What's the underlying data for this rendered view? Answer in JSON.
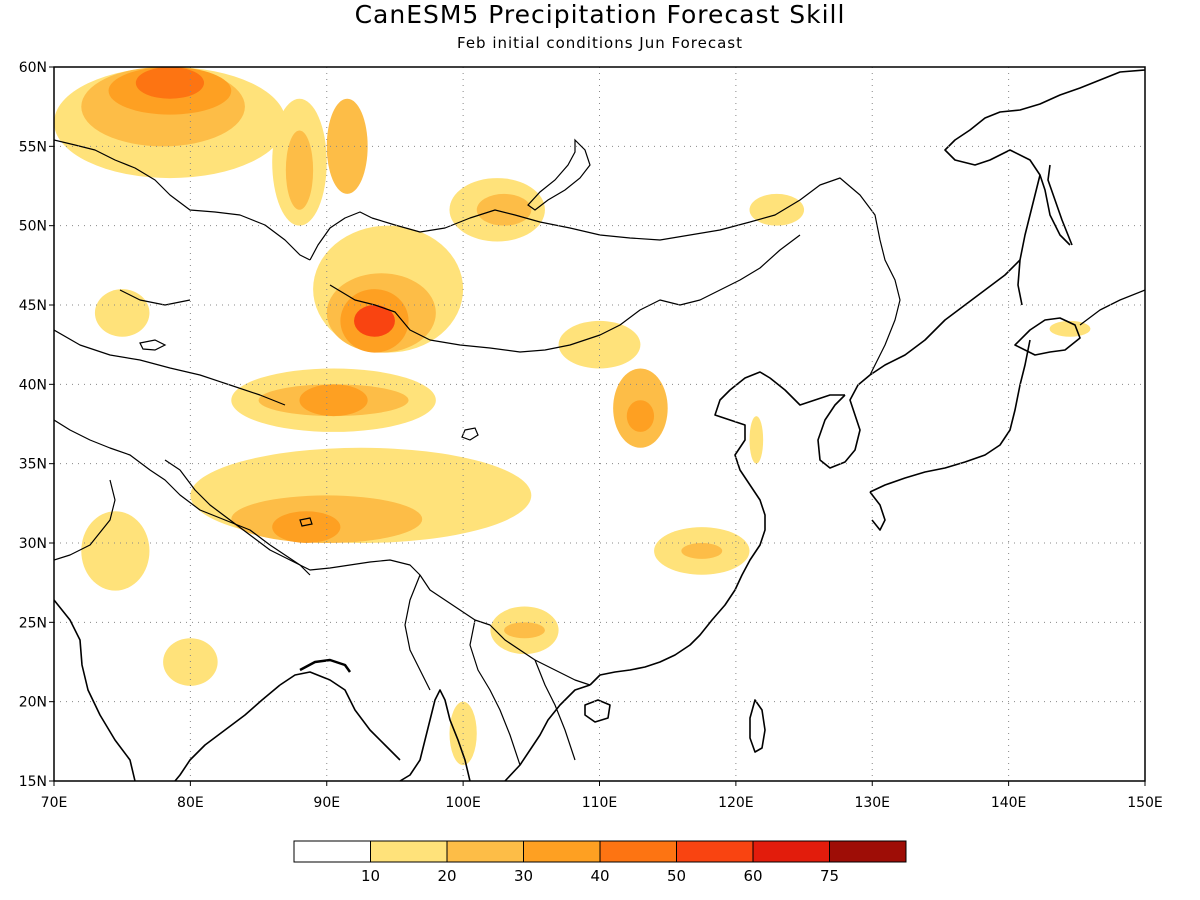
{
  "title": "CanESM5 Precipitation Forecast Skill",
  "subtitle": "Feb initial conditions  Jun Forecast",
  "map": {
    "projection": "lat-lon",
    "lon_range": [
      70,
      150
    ],
    "lat_range": [
      15,
      60
    ],
    "lon_ticks": [
      "70E",
      "80E",
      "90E",
      "100E",
      "110E",
      "120E",
      "130E",
      "140E",
      "150E"
    ],
    "lat_ticks": [
      "15N",
      "20N",
      "25N",
      "30N",
      "35N",
      "40N",
      "45N",
      "50N",
      "55N",
      "60N"
    ],
    "grid": true,
    "grid_style": "dotted"
  },
  "colorbar": {
    "labels": [
      "10",
      "20",
      "30",
      "40",
      "50",
      "60",
      "75"
    ],
    "colors": [
      "#ffffff",
      "#ffe27a",
      "#fdbd47",
      "#fea022",
      "#fd7412",
      "#f94411",
      "#e21c0c",
      "#9e0d06"
    ]
  },
  "chart_data": {
    "type": "heatmap",
    "title": "CanESM5 Precipitation Forecast Skill",
    "subtitle": "Feb initial conditions  Jun Forecast",
    "xlim": [
      70,
      150
    ],
    "ylim": [
      15,
      60
    ],
    "levels": [
      10,
      20,
      30,
      40,
      50,
      60,
      75
    ],
    "regions": [
      {
        "lon": [
          70,
          87
        ],
        "lat": [
          53,
          60
        ],
        "level": 10
      },
      {
        "lon": [
          72,
          84
        ],
        "lat": [
          55,
          60
        ],
        "level": 20
      },
      {
        "lon": [
          74,
          83
        ],
        "lat": [
          57,
          60
        ],
        "level": 30
      },
      {
        "lon": [
          76,
          81
        ],
        "lat": [
          58,
          60
        ],
        "level": 40
      },
      {
        "lon": [
          86,
          90
        ],
        "lat": [
          50,
          58
        ],
        "level": 10
      },
      {
        "lon": [
          87,
          89
        ],
        "lat": [
          51,
          56
        ],
        "level": 20
      },
      {
        "lon": [
          90,
          93
        ],
        "lat": [
          52,
          58
        ],
        "level": 20
      },
      {
        "lon": [
          89,
          100
        ],
        "lat": [
          42,
          50
        ],
        "level": 10
      },
      {
        "lon": [
          90,
          98
        ],
        "lat": [
          42,
          47
        ],
        "level": 20
      },
      {
        "lon": [
          91,
          96
        ],
        "lat": [
          42,
          46
        ],
        "level": 30
      },
      {
        "lon": [
          92,
          95
        ],
        "lat": [
          43,
          45
        ],
        "level": 50
      },
      {
        "lon": [
          99,
          106
        ],
        "lat": [
          49,
          53
        ],
        "level": 10
      },
      {
        "lon": [
          101,
          105
        ],
        "lat": [
          50,
          52
        ],
        "level": 20
      },
      {
        "lon": [
          83,
          98
        ],
        "lat": [
          37,
          41
        ],
        "level": 10
      },
      {
        "lon": [
          85,
          96
        ],
        "lat": [
          38,
          40
        ],
        "level": 20
      },
      {
        "lon": [
          88,
          93
        ],
        "lat": [
          38,
          40
        ],
        "level": 30
      },
      {
        "lon": [
          107,
          113
        ],
        "lat": [
          41,
          44
        ],
        "level": 10
      },
      {
        "lon": [
          111,
          115
        ],
        "lat": [
          36,
          41
        ],
        "level": 20
      },
      {
        "lon": [
          112,
          114
        ],
        "lat": [
          37,
          39
        ],
        "level": 30
      },
      {
        "lon": [
          80,
          105
        ],
        "lat": [
          30,
          36
        ],
        "level": 10
      },
      {
        "lon": [
          83,
          97
        ],
        "lat": [
          30,
          33
        ],
        "level": 20
      },
      {
        "lon": [
          86,
          91
        ],
        "lat": [
          30,
          32
        ],
        "level": 30
      },
      {
        "lon": [
          114,
          121
        ],
        "lat": [
          28,
          31
        ],
        "level": 10
      },
      {
        "lon": [
          116,
          119
        ],
        "lat": [
          29,
          30
        ],
        "level": 20
      },
      {
        "lon": [
          102,
          107
        ],
        "lat": [
          23,
          26
        ],
        "level": 10
      },
      {
        "lon": [
          103,
          106
        ],
        "lat": [
          24,
          25
        ],
        "level": 20
      },
      {
        "lon": [
          99,
          101
        ],
        "lat": [
          16,
          20
        ],
        "level": 10
      },
      {
        "lon": [
          72,
          77
        ],
        "lat": [
          27,
          32
        ],
        "level": 10
      },
      {
        "lon": [
          78,
          82
        ],
        "lat": [
          21,
          24
        ],
        "level": 10
      },
      {
        "lon": [
          73,
          77
        ],
        "lat": [
          43,
          46
        ],
        "level": 10
      },
      {
        "lon": [
          121,
          125
        ],
        "lat": [
          50,
          52
        ],
        "level": 10
      },
      {
        "lon": [
          121,
          122
        ],
        "lat": [
          35,
          38
        ],
        "level": 10
      },
      {
        "lon": [
          143,
          146
        ],
        "lat": [
          43,
          44
        ],
        "level": 10
      }
    ]
  }
}
